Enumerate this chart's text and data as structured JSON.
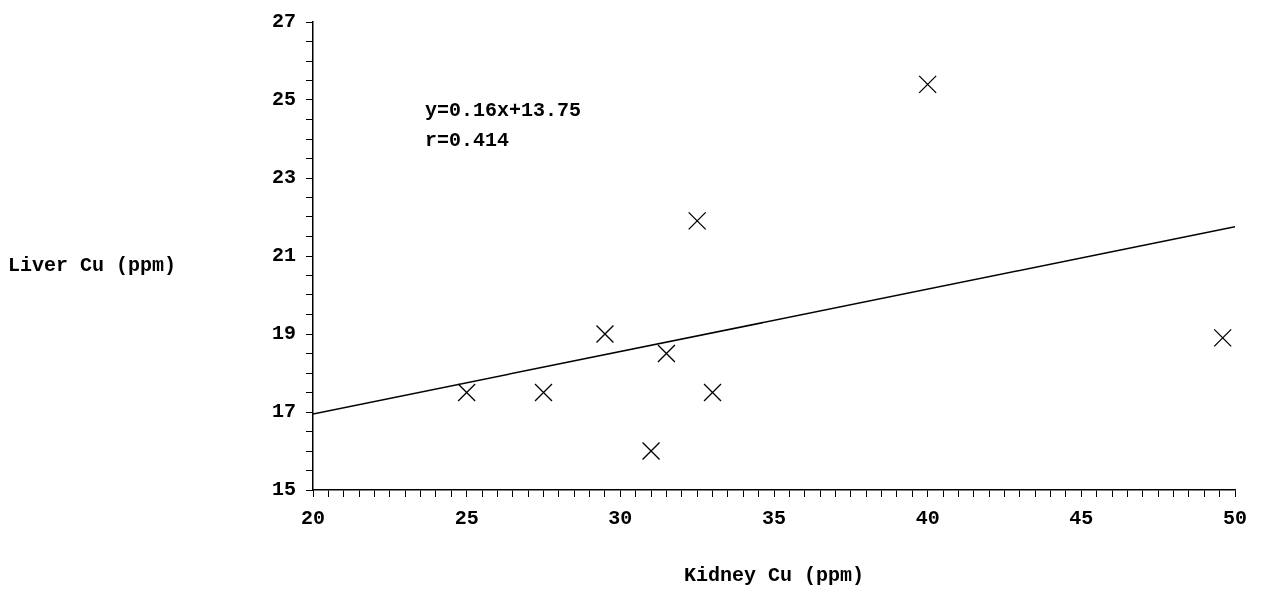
{
  "chart_data": {
    "type": "scatter",
    "xlabel": "Kidney Cu (ppm)",
    "ylabel": "Liver Cu (ppm)",
    "annotations": [
      "y=0.16x+13.75",
      "r=0.414"
    ],
    "series": [
      {
        "color": "#000000",
        "marker": "cross",
        "x": [
          25.0,
          27.5,
          29.5,
          31.0,
          31.5,
          32.5,
          33.0,
          40.0,
          49.6
        ],
        "values": [
          17.5,
          17.5,
          19.0,
          16.0,
          18.5,
          21.9,
          17.5,
          25.4,
          18.9
        ]
      },
      {
        "type": "line",
        "color": "#000000",
        "marker": "none",
        "x": [
          20,
          50
        ],
        "values": [
          16.95,
          21.75
        ]
      }
    ],
    "xlim": [
      20,
      50
    ],
    "ylim": [
      15,
      27
    ],
    "xticks": [
      20,
      {
        "value": 20.5,
        "label": null
      },
      {
        "value": 21,
        "label": null
      },
      {
        "value": 21.5,
        "label": null
      },
      {
        "value": 22,
        "label": null
      },
      {
        "value": 22.5,
        "label": null
      },
      {
        "value": 23,
        "label": null
      },
      {
        "value": 23.5,
        "label": null
      },
      {
        "value": 24,
        "label": null
      },
      {
        "value": 24.5,
        "label": null
      },
      25,
      {
        "value": 25.5,
        "label": null
      },
      {
        "value": 26,
        "label": null
      },
      {
        "value": 26.5,
        "label": null
      },
      {
        "value": 27,
        "label": null
      },
      {
        "value": 27.5,
        "label": null
      },
      {
        "value": 28,
        "label": null
      },
      {
        "value": 28.5,
        "label": null
      },
      {
        "value": 29,
        "label": null
      },
      {
        "value": 29.5,
        "label": null
      },
      30,
      {
        "value": 30.5,
        "label": null
      },
      {
        "value": 31,
        "label": null
      },
      {
        "value": 31.5,
        "label": null
      },
      {
        "value": 32,
        "label": null
      },
      {
        "value": 32.5,
        "label": null
      },
      {
        "value": 33,
        "label": null
      },
      {
        "value": 33.5,
        "label": null
      },
      {
        "value": 34,
        "label": null
      },
      {
        "value": 34.5,
        "label": null
      },
      35,
      {
        "value": 35.5,
        "label": null
      },
      {
        "value": 36,
        "label": null
      },
      {
        "value": 36.5,
        "label": null
      },
      {
        "value": 37,
        "label": null
      },
      {
        "value": 37.5,
        "label": null
      },
      {
        "value": 38,
        "label": null
      },
      {
        "value": 38.5,
        "label": null
      },
      {
        "value": 39,
        "label": null
      },
      {
        "value": 39.5,
        "label": null
      },
      40,
      {
        "value": 40.5,
        "label": null
      },
      {
        "value": 41,
        "label": null
      },
      {
        "value": 41.5,
        "label": null
      },
      {
        "value": 42,
        "label": null
      },
      {
        "value": 42.5,
        "label": null
      },
      {
        "value": 43,
        "label": null
      },
      {
        "value": 43.5,
        "label": null
      },
      {
        "value": 44,
        "label": null
      },
      {
        "value": 44.5,
        "label": null
      },
      45,
      {
        "value": 45.5,
        "label": null
      },
      {
        "value": 46,
        "label": null
      },
      {
        "value": 46.5,
        "label": null
      },
      {
        "value": 47,
        "label": null
      },
      {
        "value": 47.5,
        "label": null
      },
      {
        "value": 48,
        "label": null
      },
      {
        "value": 48.5,
        "label": null
      },
      {
        "value": 49,
        "label": null
      },
      {
        "value": 49.5,
        "label": null
      },
      50
    ],
    "yticks": [
      15,
      {
        "value": 15.5,
        "label": null
      },
      {
        "value": 16,
        "label": null
      },
      {
        "value": 16.5,
        "label": null
      },
      17,
      {
        "value": 17.5,
        "label": null
      },
      {
        "value": 18,
        "label": null
      },
      {
        "value": 18.5,
        "label": null
      },
      19,
      {
        "value": 19.5,
        "label": null
      },
      {
        "value": 20,
        "label": null
      },
      {
        "value": 20.5,
        "label": null
      },
      21,
      {
        "value": 21.5,
        "label": null
      },
      {
        "value": 22,
        "label": null
      },
      {
        "value": 22.5,
        "label": null
      },
      23,
      {
        "value": 23.5,
        "label": null
      },
      {
        "value": 24,
        "label": null
      },
      {
        "value": 24.5,
        "label": null
      },
      25,
      {
        "value": 25.5,
        "label": null
      },
      {
        "value": 26,
        "label": null
      },
      {
        "value": 26.5,
        "label": null
      },
      27
    ]
  }
}
